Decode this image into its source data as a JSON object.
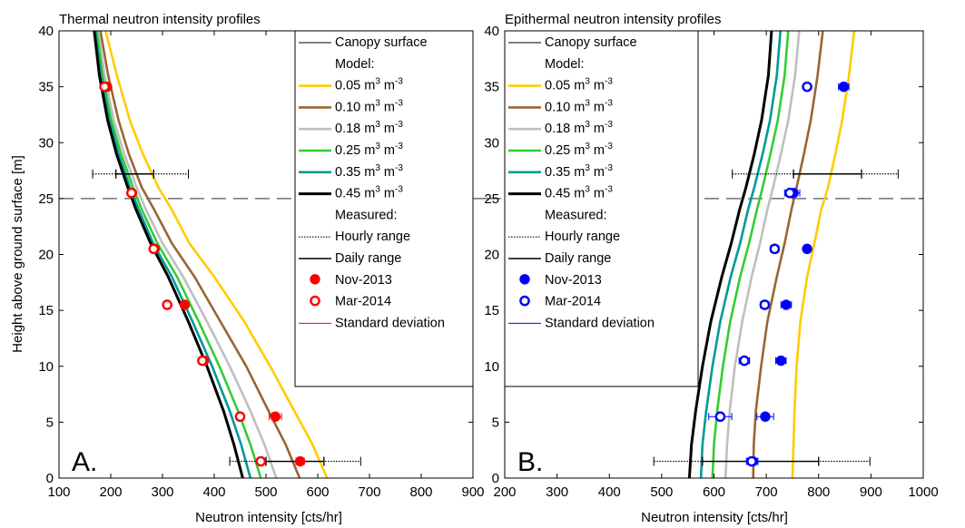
{
  "figure": {
    "ylabel": "Height above ground surface [m]",
    "xlabel": "Neutron intensity [cts/hr]"
  },
  "legend_labels": {
    "canopy": "Canopy surface",
    "model": "Model:",
    "measured": "Measured:",
    "hourly": "Hourly range",
    "daily": "Daily range",
    "nov": "Nov-2013",
    "mar": "Mar-2014",
    "std": "Standard deviation",
    "unit": "m",
    "unit_sup": "3"
  },
  "chart_data": [
    {
      "type": "line",
      "panel_label": "A.",
      "title": "Thermal neutron intensity profiles",
      "xlabel": "Neutron intensity [cts/hr]",
      "ylabel": "Height above ground surface [m]",
      "xlim": [
        100,
        900
      ],
      "ylim": [
        0,
        40
      ],
      "xticks": [
        100,
        200,
        300,
        400,
        500,
        600,
        700,
        800,
        900
      ],
      "yticks": [
        0,
        5,
        10,
        15,
        20,
        25,
        30,
        35,
        40
      ],
      "canopy_height": 25,
      "legend_position": "top-right",
      "point_color": "#ff0000",
      "model_series": [
        {
          "name": "0.05",
          "color": "#ffcc00",
          "x": [
            618,
            590,
            555,
            508,
            458,
            400,
            352,
            318,
            292,
            262,
            237,
            212,
            190
          ],
          "y": [
            0,
            3,
            6,
            10,
            14,
            18,
            21,
            24,
            26,
            29,
            32,
            36,
            40
          ]
        },
        {
          "name": "0.10",
          "color": "#996633",
          "x": [
            565,
            538,
            505,
            462,
            412,
            362,
            318,
            284,
            260,
            235,
            215,
            195,
            180
          ],
          "y": [
            0,
            3,
            6,
            10,
            14,
            18,
            21,
            24,
            26,
            29,
            32,
            36,
            40
          ]
        },
        {
          "name": "0.18",
          "color": "#bfbfbf",
          "x": [
            520,
            497,
            470,
            430,
            386,
            340,
            300,
            268,
            250,
            226,
            206,
            188,
            176
          ],
          "y": [
            0,
            3,
            6,
            10,
            14,
            18,
            21,
            24,
            26,
            29,
            32,
            36,
            40
          ]
        },
        {
          "name": "0.25",
          "color": "#33cc33",
          "x": [
            490,
            470,
            446,
            410,
            370,
            328,
            290,
            260,
            243,
            220,
            201,
            184,
            173
          ],
          "y": [
            0,
            3,
            6,
            10,
            14,
            18,
            21,
            24,
            26,
            29,
            32,
            36,
            40
          ]
        },
        {
          "name": "0.35",
          "color": "#009999",
          "x": [
            470,
            452,
            430,
            396,
            358,
            318,
            282,
            254,
            237,
            215,
            197,
            181,
            170
          ],
          "y": [
            0,
            3,
            6,
            10,
            14,
            18,
            21,
            24,
            26,
            29,
            32,
            36,
            40
          ]
        },
        {
          "name": "0.45",
          "color": "#000000",
          "x": [
            455,
            438,
            418,
            386,
            350,
            311,
            277,
            249,
            233,
            211,
            194,
            178,
            168
          ],
          "y": [
            0,
            3,
            6,
            10,
            14,
            18,
            21,
            24,
            26,
            29,
            32,
            36,
            40
          ]
        }
      ],
      "hourly_range": [
        {
          "y": 27.2,
          "xmin": 165,
          "xmax": 350
        },
        {
          "y": 1.5,
          "xmin": 430,
          "xmax": 683
        }
      ],
      "daily_range": [
        {
          "y": 27.2,
          "xmin": 210,
          "xmax": 283
        },
        {
          "y": 1.5,
          "xmin": 500,
          "xmax": 612
        }
      ],
      "nov_2013": [
        {
          "y": 35,
          "x": 193,
          "sd": 5
        },
        {
          "y": 25.5,
          "x": 241,
          "sd": 5
        },
        {
          "y": 20.5,
          "x": 285,
          "sd": 5
        },
        {
          "y": 15.5,
          "x": 343,
          "sd": 6
        },
        {
          "y": 10.5,
          "x": 380,
          "sd": 6
        },
        {
          "y": 5.5,
          "x": 518,
          "sd": 12
        },
        {
          "y": 1.5,
          "x": 566,
          "sd": 8
        }
      ],
      "mar_2014": [
        {
          "y": 35,
          "x": 188,
          "sd": 5
        },
        {
          "y": 25.5,
          "x": 240,
          "sd": 5
        },
        {
          "y": 20.5,
          "x": 283,
          "sd": 5
        },
        {
          "y": 15.5,
          "x": 309,
          "sd": 5
        },
        {
          "y": 10.5,
          "x": 377,
          "sd": 6
        },
        {
          "y": 5.5,
          "x": 450,
          "sd": 7
        },
        {
          "y": 1.5,
          "x": 490,
          "sd": 7
        }
      ]
    },
    {
      "type": "line",
      "panel_label": "B.",
      "title": "Epithermal neutron intensity profiles",
      "xlabel": "Neutron intensity [cts/hr]",
      "ylabel": "",
      "xlim": [
        200,
        1000
      ],
      "ylim": [
        0,
        40
      ],
      "xticks": [
        200,
        300,
        400,
        500,
        600,
        700,
        800,
        900,
        1000
      ],
      "yticks": [
        0,
        5,
        10,
        15,
        20,
        25,
        30,
        35,
        40
      ],
      "canopy_height": 25,
      "legend_position": "top-left",
      "point_color": "#0000ff",
      "model_series": [
        {
          "name": "0.05",
          "color": "#ffcc00",
          "x": [
            750,
            752,
            754,
            758,
            765,
            778,
            792,
            805,
            818,
            832,
            845,
            858,
            868
          ],
          "y": [
            0,
            3,
            6,
            10,
            14,
            18,
            21,
            24,
            26,
            29,
            32,
            36,
            40
          ]
        },
        {
          "name": "0.10",
          "color": "#996633",
          "x": [
            675,
            676,
            680,
            690,
            702,
            720,
            735,
            748,
            758,
            772,
            785,
            798,
            808
          ],
          "y": [
            0,
            3,
            6,
            10,
            14,
            18,
            21,
            24,
            26,
            29,
            32,
            36,
            40
          ]
        },
        {
          "name": "0.18",
          "color": "#bfbfbf",
          "x": [
            622,
            625,
            630,
            640,
            654,
            672,
            688,
            702,
            713,
            728,
            742,
            755,
            763
          ],
          "y": [
            0,
            3,
            6,
            10,
            14,
            18,
            21,
            24,
            26,
            29,
            32,
            36,
            40
          ]
        },
        {
          "name": "0.25",
          "color": "#33cc33",
          "x": [
            597,
            600,
            606,
            617,
            631,
            650,
            667,
            682,
            693,
            708,
            722,
            735,
            742
          ],
          "y": [
            0,
            3,
            6,
            10,
            14,
            18,
            21,
            24,
            26,
            29,
            32,
            36,
            40
          ]
        },
        {
          "name": "0.35",
          "color": "#009999",
          "x": [
            575,
            578,
            585,
            597,
            612,
            632,
            650,
            665,
            677,
            693,
            707,
            720,
            727
          ],
          "y": [
            0,
            3,
            6,
            10,
            14,
            18,
            21,
            24,
            26,
            29,
            32,
            36,
            40
          ]
        },
        {
          "name": "0.45",
          "color": "#000000",
          "x": [
            553,
            557,
            565,
            578,
            594,
            615,
            633,
            649,
            661,
            677,
            691,
            704,
            710
          ],
          "y": [
            0,
            3,
            6,
            10,
            14,
            18,
            21,
            24,
            26,
            29,
            32,
            36,
            40
          ]
        }
      ],
      "hourly_range": [
        {
          "y": 27.2,
          "xmin": 635,
          "xmax": 952
        },
        {
          "y": 1.5,
          "xmin": 485,
          "xmax": 898
        }
      ],
      "daily_range": [
        {
          "y": 27.2,
          "xmin": 752,
          "xmax": 882
        },
        {
          "y": 1.5,
          "xmin": 578,
          "xmax": 800
        }
      ],
      "nov_2013": [
        {
          "y": 35,
          "x": 848,
          "sd": 10
        },
        {
          "y": 25.5,
          "x": 752,
          "sd": 12
        },
        {
          "y": 20.5,
          "x": 778,
          "sd": 6
        },
        {
          "y": 15.5,
          "x": 738,
          "sd": 10
        },
        {
          "y": 10.5,
          "x": 728,
          "sd": 10
        },
        {
          "y": 5.5,
          "x": 698,
          "sd": 16
        },
        {
          "y": 1.5,
          "x": 674,
          "sd": 10
        }
      ],
      "mar_2014": [
        {
          "y": 35,
          "x": 778,
          "sd": 5
        },
        {
          "y": 25.5,
          "x": 745,
          "sd": 10
        },
        {
          "y": 20.5,
          "x": 716,
          "sd": 8
        },
        {
          "y": 15.5,
          "x": 697,
          "sd": 8
        },
        {
          "y": 10.5,
          "x": 658,
          "sd": 10
        },
        {
          "y": 5.5,
          "x": 612,
          "sd": 22
        },
        {
          "y": 1.5,
          "x": 672,
          "sd": 10
        }
      ]
    }
  ]
}
